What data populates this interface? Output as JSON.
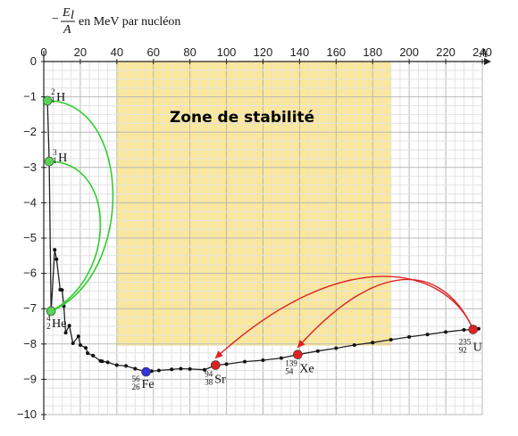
{
  "chart_data": {
    "type": "scatter",
    "title": "",
    "xlabel": "A",
    "ylabel_fraction_num": "E",
    "ylabel_fraction_sub": "l",
    "ylabel_fraction_den": "A",
    "ylabel_prefix": "−",
    "ylabel_suffix": "en MeV par nucléon",
    "xlim": [
      0,
      240
    ],
    "ylim": [
      -10,
      0
    ],
    "xticks": [
      0,
      20,
      40,
      60,
      80,
      100,
      120,
      140,
      160,
      180,
      200,
      220,
      240
    ],
    "yticks": [
      0,
      -1,
      -2,
      -3,
      -4,
      -5,
      -6,
      -7,
      -8,
      -9,
      -10
    ],
    "grid": true,
    "stability_zone": {
      "label": "Zone de stabilité",
      "x_range": [
        40,
        190
      ],
      "color": "#fbe79a"
    },
    "curve": [
      [
        2,
        -1.11
      ],
      [
        3,
        -2.83
      ],
      [
        4,
        -7.07
      ],
      [
        6,
        -5.33
      ],
      [
        7,
        -5.6
      ],
      [
        9,
        -6.46
      ],
      [
        10,
        -6.47
      ],
      [
        11,
        -6.93
      ],
      [
        12,
        -7.68
      ],
      [
        14,
        -7.48
      ],
      [
        16,
        -7.98
      ],
      [
        19,
        -7.78
      ],
      [
        20,
        -8.03
      ],
      [
        23,
        -8.11
      ],
      [
        24,
        -8.26
      ],
      [
        27,
        -8.33
      ],
      [
        31,
        -8.48
      ],
      [
        32,
        -8.49
      ],
      [
        35,
        -8.52
      ],
      [
        40,
        -8.6
      ],
      [
        45,
        -8.62
      ],
      [
        50,
        -8.7
      ],
      [
        56,
        -8.79
      ],
      [
        59,
        -8.77
      ],
      [
        63,
        -8.75
      ],
      [
        70,
        -8.72
      ],
      [
        75,
        -8.7
      ],
      [
        80,
        -8.71
      ],
      [
        88,
        -8.73
      ],
      [
        94,
        -8.6
      ],
      [
        100,
        -8.57
      ],
      [
        110,
        -8.5
      ],
      [
        120,
        -8.46
      ],
      [
        130,
        -8.4
      ],
      [
        139,
        -8.3
      ],
      [
        150,
        -8.2
      ],
      [
        160,
        -8.12
      ],
      [
        170,
        -8.03
      ],
      [
        180,
        -7.96
      ],
      [
        190,
        -7.88
      ],
      [
        200,
        -7.8
      ],
      [
        210,
        -7.73
      ],
      [
        220,
        -7.66
      ],
      [
        230,
        -7.6
      ],
      [
        235,
        -7.59
      ],
      [
        238,
        -7.57
      ]
    ],
    "nuclides": [
      {
        "symbol": "H",
        "mass": "2",
        "charge": "1",
        "A": 2,
        "y": -1.11,
        "color": "#55d455"
      },
      {
        "symbol": "H",
        "mass": "3",
        "charge": "1",
        "A": 3,
        "y": -2.83,
        "color": "#55d455"
      },
      {
        "symbol": "He",
        "mass": "4",
        "charge": "2",
        "A": 4,
        "y": -7.07,
        "color": "#55d455"
      },
      {
        "symbol": "Fe",
        "mass": "56",
        "charge": "26",
        "A": 56,
        "y": -8.79,
        "color": "#3333dd"
      },
      {
        "symbol": "Sr",
        "mass": "94",
        "charge": "38",
        "A": 94,
        "y": -8.6,
        "color": "#dd2222"
      },
      {
        "symbol": "Xe",
        "mass": "139",
        "charge": "54",
        "A": 139,
        "y": -8.3,
        "color": "#dd2222"
      },
      {
        "symbol": "U",
        "mass": "235",
        "charge": "92",
        "A": 235,
        "y": -7.59,
        "color": "#dd2222"
      }
    ],
    "fusion_arrows_color": "#33cc33",
    "fission_arrows_color": "#dd2222"
  }
}
